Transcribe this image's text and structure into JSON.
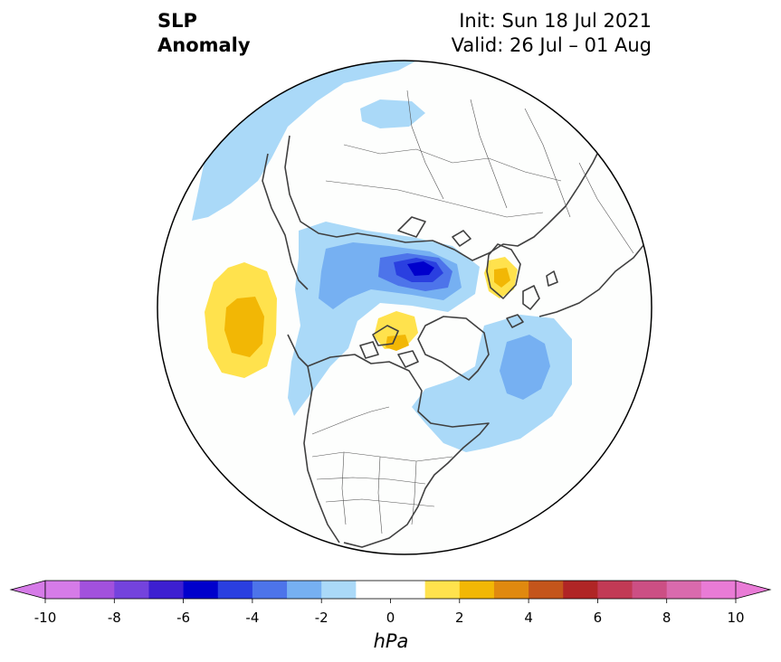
{
  "title": {
    "line1": "SLP",
    "line2": "Anomaly",
    "init": "Init: Sun 18 Jul 2021",
    "valid": "Valid: 26 Jul – 01 Aug"
  },
  "colorbar": {
    "unit": "hPa",
    "tick_labels": [
      "-10",
      "-8",
      "-6",
      "-4",
      "-2",
      "0",
      "2",
      "4",
      "6",
      "8",
      "10"
    ],
    "colors": [
      "#d67be8",
      "#a251dd",
      "#7443dd",
      "#3d1fd1",
      "#0000cc",
      "#2a3fe0",
      "#4d74ea",
      "#76b0f2",
      "#aad9f8",
      "#ffffff",
      "#ffffff",
      "#ffe24d",
      "#f2b705",
      "#e0890f",
      "#c4551b",
      "#b02525",
      "#c23a55",
      "#cc4f84",
      "#d96aad",
      "#e97bd6"
    ],
    "min": -10,
    "max": 10,
    "extend_left_color": "#d67be8",
    "extend_right_color": "#e97bd6"
  },
  "map": {
    "projection": "north-polar-stereographic",
    "anomalies": [
      {
        "label": "negative anomaly",
        "region": "Arctic north of Siberia",
        "level": -5
      },
      {
        "label": "negative anomaly",
        "region": "North Atlantic",
        "level": -3
      },
      {
        "label": "positive anomaly",
        "region": "North Pacific",
        "level": 2
      },
      {
        "label": "positive anomaly",
        "region": "Canadian Arctic",
        "level": 2
      },
      {
        "label": "positive anomaly",
        "region": "Scandinavia",
        "level": 2
      }
    ]
  }
}
